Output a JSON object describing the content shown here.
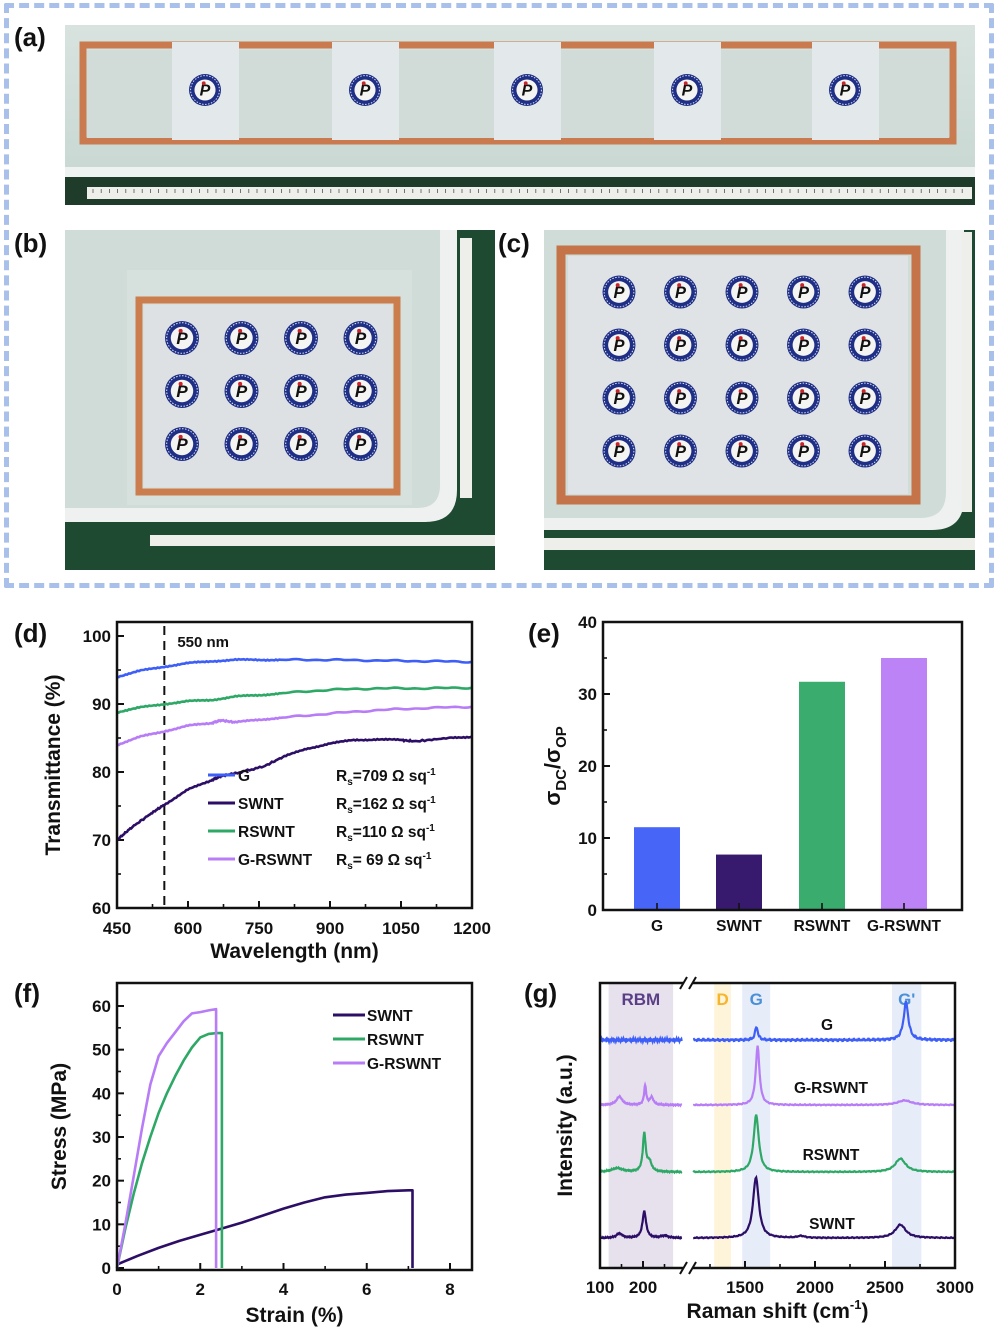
{
  "panels": {
    "a": {
      "label": "(a)",
      "description": "Long strip film with copper tape frame, 5 logo samples, ruler below",
      "logo_count": 5
    },
    "b": {
      "label": "(b)",
      "description": "Film with copper tape frame, 3x4 grid of logos, rulers",
      "logo_rows": 3,
      "logo_cols": 4
    },
    "c": {
      "label": "(c)",
      "description": "Film with copper tape frame, 4x5 grid of logos, rulers",
      "logo_rows": 4,
      "logo_cols": 5
    },
    "d": {
      "label": "(d)"
    },
    "e": {
      "label": "(e)"
    },
    "f": {
      "label": "(f)"
    },
    "g": {
      "label": "(g)"
    }
  },
  "colors": {
    "G": "#3d5ef7",
    "SWNT": "#2c0e66",
    "RSWNT": "#2ea866",
    "G-RSWNT": "#b77cf6",
    "frame_dash": "#a9c1ea",
    "RBM_band": "#e6e1ec",
    "D_band": "#fdf4da",
    "G_band": "#e6edf8",
    "RBM_text": "#5b3f86",
    "D_text": "#f6b52a",
    "G_text": "#4a8fd8"
  },
  "chart_data": [
    {
      "id": "d",
      "type": "line",
      "xlabel": "Wavelength (nm)",
      "ylabel": "Transmittance (%)",
      "xlim": [
        450,
        1200
      ],
      "ylim": [
        60,
        102
      ],
      "xticks": [
        450,
        600,
        750,
        900,
        1050,
        1200
      ],
      "yticks": [
        60,
        70,
        80,
        90,
        100
      ],
      "annotation": {
        "text": "550 nm",
        "x": 550,
        "style": "dashed vertical line"
      },
      "legend": [
        {
          "name": "G",
          "rs": "R",
          "sub": "s",
          "value": "=709 Ω sq",
          "sup": "-1"
        },
        {
          "name": "SWNT",
          "rs": "R",
          "sub": "s",
          "value": "=162 Ω sq",
          "sup": "-1"
        },
        {
          "name": "RSWNT",
          "rs": "R",
          "sub": "s",
          "value": "=110 Ω sq",
          "sup": "-1"
        },
        {
          "name": "G-RSWNT",
          "rs": "R",
          "sub": "s",
          "value": "=  69 Ω sq",
          "sup": "-1"
        }
      ],
      "series": [
        {
          "name": "G",
          "x": [
            450,
            500,
            550,
            600,
            650,
            700,
            750,
            800,
            900,
            1000,
            1100,
            1200
          ],
          "y": [
            94.0,
            94.9,
            95.5,
            96.0,
            96.3,
            96.5,
            96.5,
            96.5,
            96.5,
            96.4,
            96.3,
            96.2
          ]
        },
        {
          "name": "SWNT",
          "x": [
            450,
            480,
            520,
            550,
            600,
            650,
            670,
            700,
            760,
            800,
            850,
            900,
            950,
            1000,
            1050,
            1080,
            1150,
            1200
          ],
          "y": [
            70.0,
            71.8,
            73.8,
            75.2,
            77.4,
            78.8,
            79.4,
            79.8,
            80.8,
            82.2,
            83.4,
            84.2,
            84.7,
            84.8,
            84.7,
            84.5,
            85.0,
            85.2
          ]
        },
        {
          "name": "RSWNT",
          "x": [
            450,
            500,
            550,
            600,
            650,
            700,
            750,
            800,
            900,
            1000,
            1100,
            1200
          ],
          "y": [
            88.8,
            89.5,
            90.0,
            90.4,
            90.6,
            91.1,
            91.3,
            91.6,
            92.1,
            92.3,
            92.3,
            92.4
          ]
        },
        {
          "name": "G-RSWNT",
          "x": [
            450,
            500,
            550,
            600,
            650,
            670,
            700,
            750,
            800,
            900,
            1000,
            1100,
            1200
          ],
          "y": [
            84.0,
            85.2,
            86.0,
            86.8,
            87.2,
            87.6,
            87.3,
            87.7,
            88.0,
            88.6,
            89.1,
            89.4,
            89.6
          ]
        }
      ]
    },
    {
      "id": "e",
      "type": "bar",
      "categories": [
        "G",
        "SWNT",
        "RSWNT",
        "G-RSWNT"
      ],
      "values": [
        11.5,
        7.7,
        31.7,
        35.0
      ],
      "ylabel_main": "σ",
      "ylabel_sub1": "DC",
      "ylabel_mid": "/σ",
      "ylabel_sub2": "OP",
      "xlabel": "",
      "ylim": [
        0,
        40
      ],
      "yticks": [
        0,
        10,
        20,
        30,
        40
      ]
    },
    {
      "id": "f",
      "type": "line",
      "xlabel": "Strain (%)",
      "ylabel": "Stress (MPa)",
      "xlim": [
        0,
        8.5
      ],
      "ylim": [
        0,
        65
      ],
      "xticks": [
        0,
        2,
        4,
        6,
        8
      ],
      "yticks": [
        0,
        10,
        20,
        30,
        40,
        50,
        60
      ],
      "legend": [
        "SWNT",
        "RSWNT",
        "G-RSWNT"
      ],
      "legend_position": "top-right",
      "series": [
        {
          "name": "SWNT",
          "x": [
            0,
            0.5,
            1,
            1.5,
            2,
            2.5,
            3,
            3.5,
            4,
            4.5,
            5,
            5.5,
            6,
            6.5,
            7,
            7.1,
            7.1
          ],
          "y": [
            0.8,
            2.8,
            4.6,
            6.2,
            7.6,
            9.0,
            10.4,
            12.0,
            13.6,
            15.0,
            16.2,
            16.8,
            17.2,
            17.6,
            17.8,
            17.8,
            0
          ]
        },
        {
          "name": "RSWNT",
          "x": [
            0,
            0.2,
            0.4,
            0.6,
            0.8,
            1.0,
            1.2,
            1.4,
            1.6,
            1.8,
            2.0,
            2.2,
            2.4,
            2.52,
            2.52
          ],
          "y": [
            0,
            9,
            17,
            24,
            30,
            35.5,
            40,
            44,
            47.5,
            50.5,
            52.8,
            53.6,
            53.8,
            53.8,
            0
          ]
        },
        {
          "name": "G-RSWNT",
          "x": [
            0,
            0.2,
            0.4,
            0.6,
            0.8,
            1.0,
            1.2,
            1.4,
            1.6,
            1.8,
            2.0,
            2.2,
            2.38,
            2.38
          ],
          "y": [
            0,
            10,
            21,
            32,
            42,
            48.5,
            51.5,
            54,
            56.5,
            58.3,
            58.6,
            59.0,
            59.3,
            0
          ]
        }
      ]
    },
    {
      "id": "g",
      "type": "line",
      "xlabel_main": "Raman shift (cm",
      "xlabel_sup": "-1",
      "xlabel_end": ")",
      "ylabel": "Intensity (a.u.)",
      "broken_axis": true,
      "x_segments": [
        [
          100,
          290
        ],
        [
          1100,
          3000
        ]
      ],
      "xticks": [
        100,
        200,
        1500,
        2000,
        2500,
        3000
      ],
      "bands": [
        {
          "label": "RBM",
          "range": [
            120,
            270
          ]
        },
        {
          "label": "D",
          "range": [
            1280,
            1400
          ]
        },
        {
          "label": "G",
          "range": [
            1480,
            1680
          ]
        },
        {
          "label": "G'",
          "range": [
            2550,
            2760
          ]
        }
      ],
      "series": [
        {
          "name": "G",
          "label": "G",
          "peaks": [
            {
              "x": 1582,
              "h": 0.35,
              "w": 12
            },
            {
              "x": 2650,
              "h": 1.0,
              "w": 20
            }
          ],
          "rbm_peaks": [],
          "noise": true
        },
        {
          "name": "G-RSWNT",
          "label": "G-RSWNT",
          "peaks": [
            {
              "x": 1590,
              "h": 1.55,
              "w": 16
            },
            {
              "x": 2640,
              "h": 0.12,
              "w": 60
            }
          ],
          "rbm_peaks": [
            {
              "x": 145,
              "h": 0.22,
              "w": 8
            },
            {
              "x": 205,
              "h": 0.5,
              "w": 3
            },
            {
              "x": 220,
              "h": 0.2,
              "w": 5
            }
          ]
        },
        {
          "name": "RSWNT",
          "label": "RSWNT",
          "peaks": [
            {
              "x": 1580,
              "h": 1.5,
              "w": 22
            },
            {
              "x": 2610,
              "h": 0.35,
              "w": 45
            }
          ],
          "rbm_peaks": [
            {
              "x": 140,
              "h": 0.1,
              "w": 15
            },
            {
              "x": 203,
              "h": 1.0,
              "w": 4
            },
            {
              "x": 215,
              "h": 0.25,
              "w": 6
            }
          ]
        },
        {
          "name": "SWNT",
          "label": "SWNT",
          "peaks": [
            {
              "x": 1578,
              "h": 1.6,
              "w": 25
            },
            {
              "x": 2610,
              "h": 0.35,
              "w": 45
            },
            {
              "x": 1900,
              "h": 0.05,
              "w": 30
            }
          ],
          "rbm_peaks": [
            {
              "x": 145,
              "h": 0.12,
              "w": 8
            },
            {
              "x": 203,
              "h": 0.7,
              "w": 5
            },
            {
              "x": 250,
              "h": 0.06,
              "w": 10
            }
          ]
        }
      ]
    }
  ]
}
